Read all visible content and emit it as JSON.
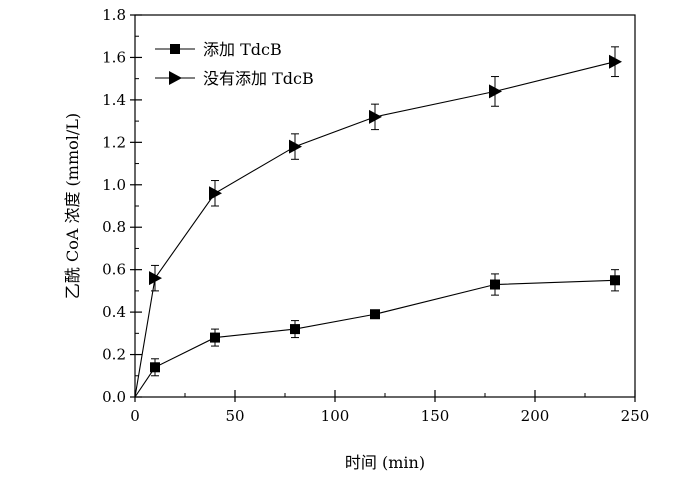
{
  "chart_data": {
    "type": "line",
    "xlabel": "时间 (min)",
    "ylabel": "乙酰 CoA 浓度 (mmol/L)",
    "xlim": [
      0,
      250
    ],
    "ylim": [
      0.0,
      1.8
    ],
    "xticks": [
      0,
      50,
      100,
      150,
      200,
      250
    ],
    "xtick_labels": [
      "0",
      "50",
      "100",
      "150",
      "200",
      "250"
    ],
    "yticks": [
      0.0,
      0.2,
      0.4,
      0.6,
      0.8,
      1.0,
      1.2,
      1.4,
      1.6,
      1.8
    ],
    "ytick_labels": [
      "0.0",
      "0.2",
      "0.4",
      "0.6",
      "0.8",
      "1.0",
      "1.2",
      "1.4",
      "1.6",
      "1.8"
    ],
    "grid": false,
    "legend_position": "top-left",
    "x": [
      0,
      10,
      40,
      80,
      120,
      180,
      240
    ],
    "series": [
      {
        "name": "添加 TdcB",
        "marker": "square",
        "color": "#000000",
        "values": [
          0.0,
          0.14,
          0.28,
          0.32,
          0.39,
          0.53,
          0.55
        ],
        "errors": [
          0.0,
          0.04,
          0.04,
          0.04,
          0.02,
          0.05,
          0.05
        ]
      },
      {
        "name": "没有添加 TdcB",
        "marker": "triangle-right",
        "color": "#000000",
        "values": [
          0.0,
          0.56,
          0.96,
          1.18,
          1.32,
          1.44,
          1.58
        ],
        "errors": [
          0.0,
          0.06,
          0.06,
          0.06,
          0.06,
          0.07,
          0.07
        ]
      }
    ]
  }
}
